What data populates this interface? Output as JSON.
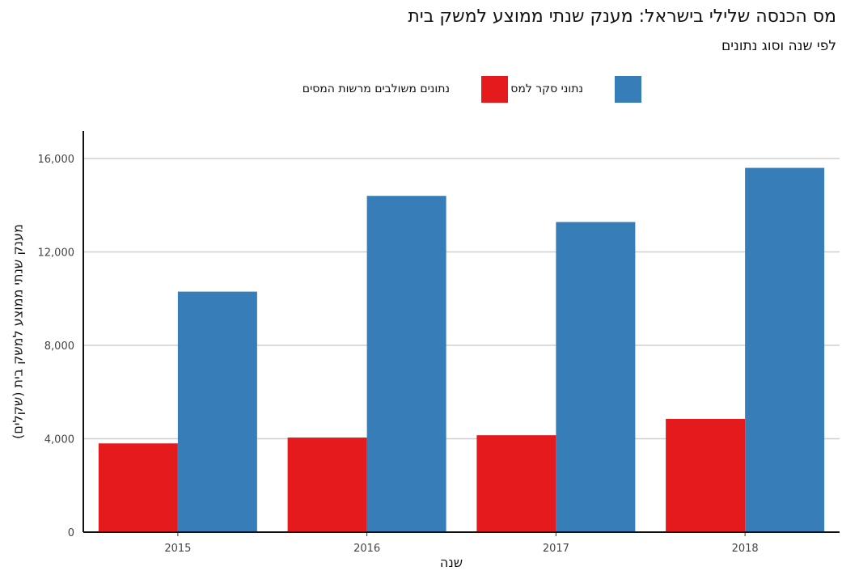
{
  "chart_data": {
    "type": "bar",
    "title": "מס הכנסה שלילי בישראל: מענק שנתי ממוצע למשק בית",
    "subtitle": "לפי שנה וסוג נתונים",
    "xlabel": "שנה",
    "ylabel": "מענק שנתי ממוצע למשק בית (שקלים)",
    "categories": [
      "2015",
      "2016",
      "2017",
      "2018"
    ],
    "series": [
      {
        "name": "נתונים משולבים מרשות המסים",
        "color": "#e41a1c",
        "values": [
          3800,
          4050,
          4150,
          4850
        ]
      },
      {
        "name": "נתוני סקר למס",
        "color": "#377eb8",
        "values": [
          10300,
          14400,
          13280,
          15600
        ]
      }
    ],
    "ylim": [
      0,
      17000
    ],
    "yticks": [
      0,
      4000,
      8000,
      12000,
      16000
    ],
    "ytick_labels": [
      "0",
      "4,000",
      "8,000",
      "12,000",
      "16,000"
    ],
    "grid": "horizontal",
    "legend": "top-center"
  }
}
